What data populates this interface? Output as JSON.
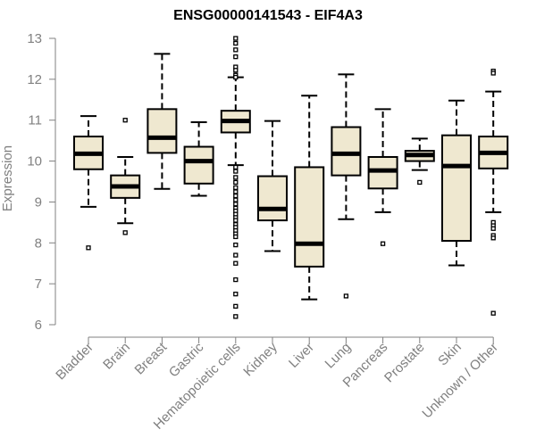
{
  "chart_data": {
    "type": "boxplot",
    "title": "ENSG00000141543 - EIF4A3",
    "xlabel": "",
    "ylabel": "Expression",
    "ylim": [
      6,
      13
    ],
    "yticks": [
      6,
      7,
      8,
      9,
      10,
      11,
      12,
      13
    ],
    "grid": false,
    "colors": {
      "box_fill": "#efe8d0",
      "stroke": "#000000",
      "axis": "#808080"
    },
    "categories": [
      "Bladder",
      "Brain",
      "Breast",
      "Gastric",
      "Hematopoietic cells",
      "Kidney",
      "Liver",
      "Lung",
      "Pancreas",
      "Prostate",
      "Skin",
      "Unknown / Other"
    ],
    "boxes": [
      {
        "name": "Bladder",
        "whisker_low": 8.88,
        "q1": 9.8,
        "median": 10.18,
        "q3": 10.6,
        "whisker_high": 11.1,
        "outliers": [
          7.88
        ]
      },
      {
        "name": "Brain",
        "whisker_low": 8.48,
        "q1": 9.1,
        "median": 9.38,
        "q3": 9.65,
        "whisker_high": 10.1,
        "outliers": [
          8.25,
          11.0
        ]
      },
      {
        "name": "Breast",
        "whisker_low": 9.32,
        "q1": 10.2,
        "median": 10.57,
        "q3": 11.27,
        "whisker_high": 12.62,
        "outliers": []
      },
      {
        "name": "Gastric",
        "whisker_low": 9.15,
        "q1": 9.45,
        "median": 10.0,
        "q3": 10.35,
        "whisker_high": 10.95,
        "outliers": []
      },
      {
        "name": "Hematopoietic cells",
        "whisker_low": 9.9,
        "q1": 10.7,
        "median": 10.98,
        "q3": 11.23,
        "whisker_high": 12.05,
        "outliers": [
          13.0,
          12.88,
          12.72,
          12.55,
          12.3,
          12.22,
          12.1,
          12.05,
          9.85,
          9.75,
          9.6,
          9.48,
          9.35,
          9.25,
          9.15,
          9.05,
          8.95,
          8.85,
          8.78,
          8.7,
          8.62,
          8.55,
          8.45,
          8.38,
          8.3,
          8.22,
          8.15,
          7.95,
          7.7,
          7.5,
          7.1,
          6.75,
          6.45,
          6.2
        ]
      },
      {
        "name": "Kidney",
        "whisker_low": 7.8,
        "q1": 8.55,
        "median": 8.83,
        "q3": 9.63,
        "whisker_high": 10.98,
        "outliers": []
      },
      {
        "name": "Liver",
        "whisker_low": 6.62,
        "q1": 7.42,
        "median": 7.98,
        "q3": 9.85,
        "whisker_high": 11.6,
        "outliers": []
      },
      {
        "name": "Lung",
        "whisker_low": 8.58,
        "q1": 9.65,
        "median": 10.18,
        "q3": 10.83,
        "whisker_high": 12.12,
        "outliers": [
          6.7
        ]
      },
      {
        "name": "Pancreas",
        "whisker_low": 8.75,
        "q1": 9.33,
        "median": 9.77,
        "q3": 10.1,
        "whisker_high": 11.27,
        "outliers": [
          7.98
        ]
      },
      {
        "name": "Prostate",
        "whisker_low": 9.78,
        "q1": 10.0,
        "median": 10.15,
        "q3": 10.25,
        "whisker_high": 10.55,
        "outliers": [
          9.48
        ]
      },
      {
        "name": "Skin",
        "whisker_low": 7.45,
        "q1": 8.05,
        "median": 9.88,
        "q3": 10.63,
        "whisker_high": 11.48,
        "outliers": []
      },
      {
        "name": "Unknown / Other",
        "whisker_low": 8.75,
        "q1": 9.82,
        "median": 10.2,
        "q3": 10.6,
        "whisker_high": 11.7,
        "outliers": [
          12.2,
          12.15,
          8.5,
          8.42,
          8.35,
          8.18,
          8.12,
          6.28
        ]
      }
    ]
  }
}
